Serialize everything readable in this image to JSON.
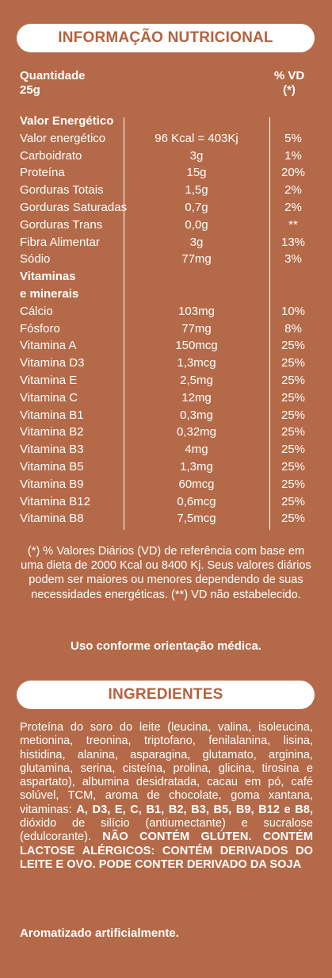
{
  "nutrition": {
    "title": "INFORMAÇÃO NUTRICIONAL",
    "quantity_label": "Quantidade",
    "quantity_value": "25g",
    "vd_label": "% VD",
    "vd_note": "(*)",
    "rows": [
      {
        "name": "Valor Energético",
        "amount": "",
        "vd": "",
        "header": true
      },
      {
        "name": "Valor energético",
        "amount": "96 Kcal = 403Kj",
        "vd": "5%"
      },
      {
        "name": "Carboidrato",
        "amount": "3g",
        "vd": "1%"
      },
      {
        "name": "Proteína",
        "amount": "15g",
        "vd": "20%"
      },
      {
        "name": "Gorduras Totais",
        "amount": "1,5g",
        "vd": "2%"
      },
      {
        "name": "Gorduras Saturadas",
        "amount": "0,7g",
        "vd": "2%"
      },
      {
        "name": "Gorduras Trans",
        "amount": "0,0g",
        "vd": "**"
      },
      {
        "name": "Fibra Alimentar",
        "amount": "3g",
        "vd": "13%"
      },
      {
        "name": "Sódio",
        "amount": "77mg",
        "vd": "3%"
      },
      {
        "name": "Vitaminas",
        "amount": "",
        "vd": "",
        "header": true
      },
      {
        "name": "e minerais",
        "amount": "",
        "vd": "",
        "header": true
      },
      {
        "name": "Cálcio",
        "amount": "103mg",
        "vd": "10%"
      },
      {
        "name": "Fósforo",
        "amount": "77mg",
        "vd": "8%"
      },
      {
        "name": "Vitamina A",
        "amount": "150mcg",
        "vd": "25%"
      },
      {
        "name": "Vitamina D3",
        "amount": "1,3mcg",
        "vd": "25%"
      },
      {
        "name": "Vitamina E",
        "amount": "2,5mg",
        "vd": "25%"
      },
      {
        "name": "Vitamina C",
        "amount": "12mg",
        "vd": "25%"
      },
      {
        "name": "Vitamina B1",
        "amount": "0,3mg",
        "vd": "25%"
      },
      {
        "name": "Vitamina B2",
        "amount": "0,32mg",
        "vd": "25%"
      },
      {
        "name": "Vitamina B3",
        "amount": "4mg",
        "vd": "25%"
      },
      {
        "name": "Vitamina B5",
        "amount": "1,3mg",
        "vd": "25%"
      },
      {
        "name": "Vitamina B9",
        "amount": "60mcg",
        "vd": "25%"
      },
      {
        "name": "Vitamina B12",
        "amount": "0,6mcg",
        "vd": "25%"
      },
      {
        "name": "Vitamina B8",
        "amount": "7,5mcg",
        "vd": "25%"
      }
    ],
    "footnote": "(*) % Valores Diários (VD) de referência com base em uma dieta de 2000 Kcal ou 8400 Kj. Seus valores diários podem ser maiores ou menores dependendo de suas necessidades energéticas. (**) VD não estabelecido.",
    "usage": "Uso conforme orientação médica."
  },
  "ingredients": {
    "title": "INGREDIENTES",
    "text_1": "Proteína do soro do leite (leucina, valina, isoleucina, metionina, treonina, triptofano, fenilalanina, lisina, histidina, alanina, asparagina, glutamato, arginina, glutamina, serina, cisteína, prolina, glicina, tirosina e aspartato), albumina desidratada, cacau em pó, café solúvel, TCM, aroma de chocolate, goma xantana, vitaminas: ",
    "vitamins_bold": "A, D3, E, C, B1, B2, B3, B5, B9, B12 e B8,",
    "text_2": " dióxido de silício (antiumectante) e sucralose (edulcorante). ",
    "allergens_bold": "NÃO CONTÉM GLÚTEN. CONTÉM LACTOSE ALÉRGICOS: CONTÉM DERIVADOS DO LEITE E OVO. PODE CONTER DERIVADO DA SOJA",
    "flavor_note": "Aromatizado artificialmente."
  },
  "colors": {
    "background": "#b46a48",
    "accent_text": "#b4623f",
    "text": "#ffffff"
  }
}
